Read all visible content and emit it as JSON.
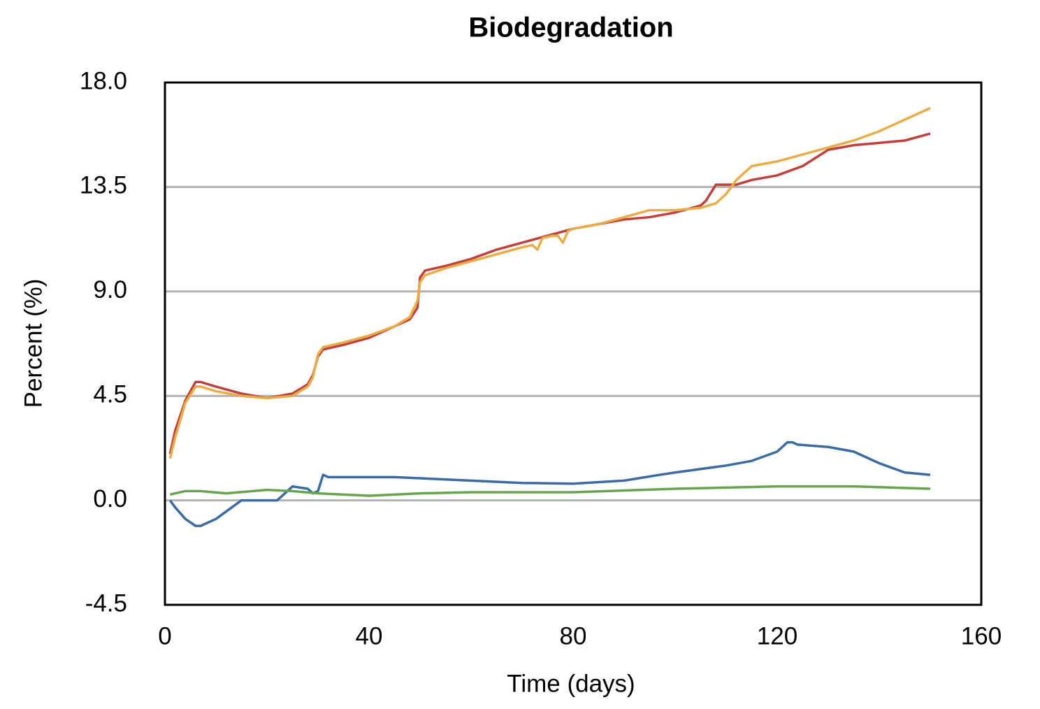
{
  "chart_data": {
    "type": "line",
    "title": "Biodegradation",
    "x_label": "Time (days)",
    "y_label": "Percent (%)",
    "xlim": [
      0,
      160
    ],
    "xticks": [
      0,
      40,
      80,
      120,
      160
    ],
    "ylim": [
      -4.5,
      18
    ],
    "yticks": [
      {
        "value": 18,
        "label": "18.0"
      },
      13.5,
      {
        "value": 9,
        "label": "9.0"
      },
      4.5,
      {
        "value": 0,
        "label": "0.0"
      },
      -4.5
    ],
    "grid": true,
    "series": [
      {
        "color": "#c0413b",
        "x": [
          1,
          2,
          4,
          6,
          7,
          10,
          15,
          20,
          25,
          28,
          29,
          30,
          31,
          35,
          40,
          45,
          48,
          49.5,
          50,
          51,
          55,
          60,
          65,
          70,
          75,
          80,
          85,
          90,
          95,
          100,
          105,
          106,
          108,
          110,
          112,
          115,
          120,
          125,
          130,
          135,
          140,
          145,
          150
        ],
        "values": [
          2.0,
          3.0,
          4.3,
          5.1,
          5.1,
          4.9,
          4.6,
          4.4,
          4.6,
          5.0,
          5.4,
          6.2,
          6.5,
          6.7,
          7.0,
          7.5,
          7.8,
          8.3,
          9.6,
          9.9,
          10.1,
          10.4,
          10.8,
          11.1,
          11.4,
          11.7,
          11.9,
          12.1,
          12.2,
          12.4,
          12.7,
          12.9,
          13.6,
          13.6,
          13.6,
          13.8,
          14.0,
          14.4,
          15.1,
          15.3,
          15.4,
          15.5,
          15.8
        ]
      },
      {
        "color": "#e9ad47",
        "x": [
          1,
          2,
          4,
          6,
          7,
          10,
          15,
          20,
          25,
          28,
          29,
          30,
          31,
          35,
          40,
          45,
          48,
          49.5,
          50,
          51,
          55,
          60,
          65,
          70,
          72,
          73,
          74,
          76,
          77,
          78,
          79,
          80,
          85,
          90,
          95,
          100,
          105,
          108,
          110,
          112,
          115,
          120,
          125,
          130,
          135,
          140,
          145,
          150
        ],
        "values": [
          1.8,
          2.7,
          4.2,
          4.9,
          4.9,
          4.7,
          4.5,
          4.4,
          4.5,
          4.9,
          5.3,
          6.3,
          6.6,
          6.8,
          7.1,
          7.5,
          7.9,
          8.6,
          9.4,
          9.7,
          10.0,
          10.3,
          10.6,
          10.9,
          11.0,
          10.8,
          11.3,
          11.4,
          11.4,
          11.1,
          11.6,
          11.7,
          11.9,
          12.2,
          12.5,
          12.5,
          12.6,
          12.8,
          13.2,
          13.8,
          14.4,
          14.6,
          14.9,
          15.2,
          15.5,
          15.9,
          16.4,
          16.9
        ]
      },
      {
        "color": "#3b6ba5",
        "x": [
          1,
          2,
          4,
          6,
          7,
          10,
          15,
          20,
          22,
          25,
          28,
          29,
          30,
          31,
          32,
          35,
          40,
          45,
          50,
          60,
          70,
          80,
          90,
          97,
          100,
          110,
          115,
          120,
          122,
          123,
          124,
          130,
          135,
          140,
          145,
          150
        ],
        "values": [
          0,
          -0.3,
          -0.8,
          -1.1,
          -1.1,
          -0.8,
          0,
          0,
          0,
          0.6,
          0.5,
          0.3,
          0.4,
          1.1,
          1.0,
          1.0,
          1.0,
          1.0,
          0.95,
          0.85,
          0.75,
          0.72,
          0.85,
          1.1,
          1.2,
          1.5,
          1.7,
          2.1,
          2.5,
          2.5,
          2.4,
          2.3,
          2.1,
          1.6,
          1.2,
          1.1
        ]
      },
      {
        "color": "#68a450",
        "x": [
          1,
          4,
          7,
          12,
          20,
          25,
          30,
          40,
          50,
          60,
          80,
          100,
          120,
          135,
          150
        ],
        "values": [
          0.25,
          0.4,
          0.4,
          0.3,
          0.45,
          0.4,
          0.3,
          0.2,
          0.3,
          0.35,
          0.35,
          0.5,
          0.6,
          0.6,
          0.5
        ]
      }
    ]
  }
}
